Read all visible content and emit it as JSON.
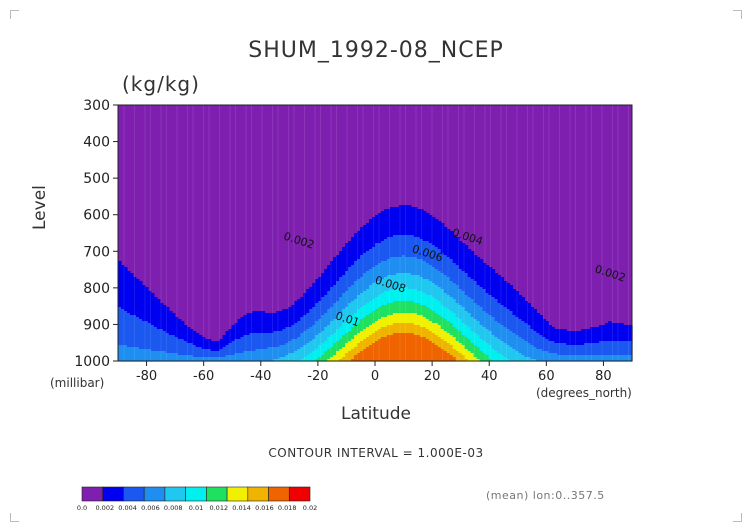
{
  "chart_data": {
    "type": "heatmap",
    "title": "SHUM_1992-08_NCEP",
    "units": "(kg/kg)",
    "ylabel": "Level",
    "yunit": "(millibar)",
    "xlabel": "Latitude",
    "xunit": "(degrees_north)",
    "xlim": [
      -90,
      90
    ],
    "ylim": [
      1000,
      300
    ],
    "x_ticks": [
      "-80",
      "-60",
      "-40",
      "-20",
      "0",
      "20",
      "40",
      "60",
      "80"
    ],
    "y_ticks": [
      "300",
      "400",
      "500",
      "600",
      "700",
      "800",
      "900",
      "1000"
    ],
    "contour_interval": "CONTOUR INTERVAL = 1.000E-03",
    "levels": [
      0,
      0.002,
      0.004,
      0.006,
      0.008,
      0.01,
      0.012,
      0.014,
      0.016,
      0.018,
      0.02
    ],
    "level_labels": [
      "0.0",
      "0.002",
      "0.004",
      "0.006",
      "0.008",
      "0.01",
      "0.012",
      "0.014",
      "0.016",
      "0.018",
      "0.02"
    ],
    "colors": [
      "#7e1fb0",
      "#0000f0",
      "#1a58f0",
      "#1e8ef0",
      "#20c8f0",
      "#00f0f0",
      "#20e060",
      "#f0f000",
      "#f0b400",
      "#f06400",
      "#f00000"
    ],
    "contour_labels": [
      {
        "text": "0.002",
        "lat": -27,
        "level": 680
      },
      {
        "text": "0.004",
        "lat": 32,
        "level": 670
      },
      {
        "text": "0.006",
        "lat": 18,
        "level": 715
      },
      {
        "text": "0.008",
        "lat": 5,
        "level": 800
      },
      {
        "text": "0.01",
        "lat": -10,
        "level": 895
      },
      {
        "text": "0.002",
        "lat": 82,
        "level": 770
      }
    ],
    "grid": false,
    "legend": "bottom colorbar"
  },
  "footer": {
    "meta": "(mean) lon:0..357.5"
  }
}
